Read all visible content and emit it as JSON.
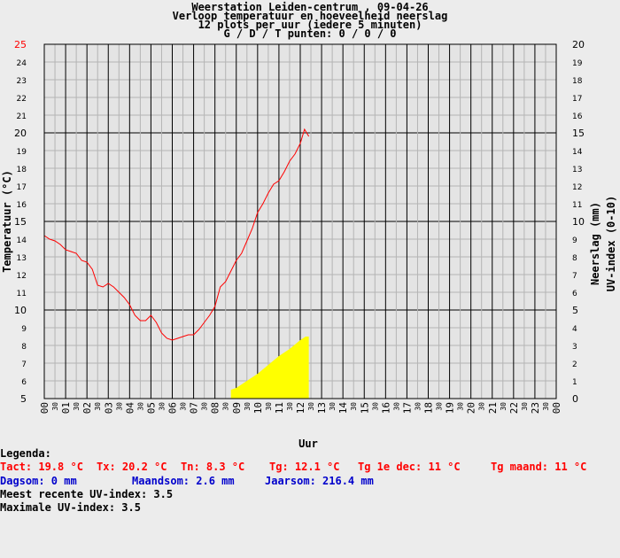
{
  "titles": {
    "line1": "Weerstation Leiden-centrum , 09-04-26",
    "line2": "Verloop temperatuur en hoeveelheid neerslag",
    "line3": "12 plots per uur (iedere 5 minuten)",
    "line4": "G / D / T punten: 0 / 0 / 0"
  },
  "chart_data": {
    "type": "line",
    "xlabel": "Uur",
    "ylabel_left": "Temperatuur (°C)",
    "ylabel_right_1": "Neerslag (mm)",
    "ylabel_right_2": "UV-index (0-10)",
    "x_hours": [
      "00",
      "01",
      "02",
      "03",
      "04",
      "05",
      "06",
      "07",
      "08",
      "09",
      "10",
      "11",
      "12",
      "13",
      "14",
      "15",
      "16",
      "17",
      "18",
      "19",
      "20",
      "21",
      "22",
      "23",
      "00"
    ],
    "x_half_label": "30",
    "ylim_left": [
      5,
      25
    ],
    "yticks_left": [
      "5",
      "6",
      "7",
      "8",
      "9",
      "10",
      "11",
      "12",
      "13",
      "14",
      "15",
      "16",
      "17",
      "18",
      "19",
      "20",
      "21",
      "22",
      "23",
      "24",
      "25"
    ],
    "ylim_right": [
      0,
      20
    ],
    "yticks_right": [
      "0",
      "1",
      "2",
      "3",
      "4",
      "5",
      "6",
      "7",
      "8",
      "9",
      "10",
      "11",
      "12",
      "13",
      "14",
      "15",
      "16",
      "17",
      "18",
      "19",
      "20"
    ],
    "colors": {
      "temperature": "#ff0000",
      "uv": "#ffff00",
      "top_tick": "#ff0000"
    },
    "series": [
      {
        "kind": "temperature",
        "x": [
          0,
          0.25,
          0.5,
          0.75,
          1.0,
          1.25,
          1.5,
          1.75,
          2.0,
          2.25,
          2.5,
          2.75,
          3.0,
          3.25,
          3.5,
          3.75,
          4.0,
          4.25,
          4.5,
          4.75,
          5.0,
          5.25,
          5.5,
          5.75,
          6.0,
          6.25,
          6.5,
          6.75,
          7.0,
          7.25,
          7.5,
          7.75,
          8.0,
          8.25,
          8.5,
          8.75,
          9.0,
          9.25,
          9.5,
          9.75,
          10.0,
          10.25,
          10.5,
          10.75,
          11.0,
          11.25,
          11.5,
          11.75,
          12.0,
          12.1,
          12.2,
          12.3,
          12.4
        ],
        "y": [
          14.2,
          14.0,
          13.9,
          13.7,
          13.4,
          13.3,
          13.2,
          12.8,
          12.7,
          12.3,
          11.4,
          11.3,
          11.5,
          11.3,
          11.0,
          10.7,
          10.3,
          9.7,
          9.4,
          9.4,
          9.7,
          9.3,
          8.7,
          8.4,
          8.3,
          8.4,
          8.5,
          8.6,
          8.6,
          8.9,
          9.3,
          9.7,
          10.2,
          11.3,
          11.6,
          12.2,
          12.8,
          13.2,
          13.9,
          14.6,
          15.5,
          16.0,
          16.6,
          17.1,
          17.3,
          17.8,
          18.4,
          18.8,
          19.4,
          19.8,
          20.2,
          20.0,
          19.8
        ]
      },
      {
        "kind": "uv",
        "x": [
          8.75,
          9.0,
          9.5,
          10.0,
          10.5,
          11.0,
          11.5,
          12.0,
          12.25,
          12.4
        ],
        "y": [
          0.5,
          0.6,
          1.0,
          1.4,
          1.9,
          2.4,
          2.8,
          3.3,
          3.5,
          3.5
        ]
      }
    ]
  },
  "legend": {
    "heading": "Legenda:",
    "row1": [
      {
        "text": "Tact: 19.8 °C",
        "color": "#ff0000"
      },
      {
        "text": "Tx: 20.2 °C",
        "color": "#ff0000"
      },
      {
        "text": "Tn: 8.3 °C",
        "color": "#ff0000"
      },
      {
        "text": "Tg: 12.1 °C",
        "color": "#ff0000"
      },
      {
        "text": "Tg 1e dec: 11 °C",
        "color": "#ff0000"
      },
      {
        "text": "Tg maand: 11 °C",
        "color": "#ff0000"
      }
    ],
    "row2": [
      {
        "text": "Dagsom: 0 mm",
        "color": "#0000cc"
      },
      {
        "text": "Maandsom: 2.6 mm",
        "color": "#0000cc"
      },
      {
        "text": "Jaarsom: 216.4 mm",
        "color": "#0000cc"
      }
    ],
    "uv_recent": "Meest recente UV-index: 3.5",
    "uv_max": "Maximale UV-index: 3.5"
  }
}
